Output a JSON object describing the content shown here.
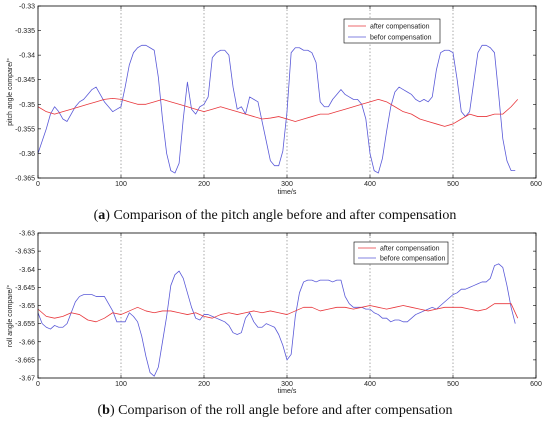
{
  "chart_data": [
    {
      "type": "line",
      "caption_letter": "a",
      "caption_text": "Comparison of the pitch angle before and after compensation",
      "xlabel": "time/s",
      "ylabel": "pitch angle compare/°",
      "xlim": [
        0,
        600
      ],
      "ylim": [
        -0.365,
        -0.33
      ],
      "xticks": [
        "0",
        "100",
        "200",
        "300",
        "400",
        "500",
        "600"
      ],
      "yticks": [
        "-0.33",
        "-0.335",
        "-0.34",
        "-0.345",
        "-0.35",
        "-0.355",
        "-0.36",
        "-0.365"
      ],
      "grid": "x-only",
      "legend": "top-right",
      "series": [
        {
          "name": "after compensation",
          "color": "#e8373c",
          "x": [
            0,
            10,
            20,
            30,
            40,
            50,
            60,
            70,
            80,
            90,
            100,
            110,
            120,
            130,
            140,
            150,
            160,
            170,
            180,
            190,
            200,
            210,
            220,
            230,
            240,
            250,
            260,
            270,
            280,
            290,
            300,
            310,
            320,
            330,
            340,
            350,
            360,
            370,
            380,
            390,
            400,
            410,
            420,
            430,
            440,
            450,
            460,
            470,
            480,
            490,
            500,
            510,
            520,
            530,
            540,
            550,
            560,
            570,
            578
          ],
          "values": [
            -0.3505,
            -0.3515,
            -0.352,
            -0.3515,
            -0.351,
            -0.3505,
            -0.35,
            -0.3495,
            -0.349,
            -0.3488,
            -0.349,
            -0.3495,
            -0.35,
            -0.35,
            -0.3495,
            -0.349,
            -0.3495,
            -0.35,
            -0.3505,
            -0.351,
            -0.3515,
            -0.351,
            -0.3505,
            -0.351,
            -0.3515,
            -0.352,
            -0.3525,
            -0.353,
            -0.3528,
            -0.3525,
            -0.353,
            -0.3535,
            -0.353,
            -0.3525,
            -0.352,
            -0.352,
            -0.3515,
            -0.351,
            -0.3505,
            -0.35,
            -0.3495,
            -0.349,
            -0.3495,
            -0.3505,
            -0.3515,
            -0.352,
            -0.353,
            -0.3535,
            -0.354,
            -0.3545,
            -0.354,
            -0.353,
            -0.352,
            -0.3525,
            -0.3525,
            -0.352,
            -0.352,
            -0.3505,
            -0.349
          ]
        },
        {
          "name": "befor compensation",
          "color": "#5a5ad8",
          "x": [
            0,
            5,
            10,
            15,
            20,
            25,
            30,
            35,
            40,
            45,
            50,
            55,
            60,
            65,
            70,
            75,
            80,
            85,
            90,
            95,
            100,
            105,
            110,
            115,
            120,
            125,
            130,
            135,
            140,
            145,
            150,
            155,
            160,
            165,
            170,
            175,
            180,
            185,
            190,
            195,
            200,
            205,
            210,
            215,
            220,
            225,
            230,
            235,
            240,
            245,
            250,
            255,
            260,
            265,
            270,
            275,
            280,
            285,
            290,
            295,
            300,
            305,
            310,
            315,
            320,
            325,
            330,
            335,
            340,
            345,
            350,
            355,
            360,
            365,
            370,
            375,
            380,
            385,
            390,
            395,
            400,
            405,
            410,
            415,
            420,
            425,
            430,
            435,
            440,
            445,
            450,
            455,
            460,
            465,
            470,
            475,
            480,
            485,
            490,
            495,
            500,
            505,
            510,
            515,
            520,
            525,
            530,
            535,
            540,
            545,
            550,
            555,
            560,
            565,
            570,
            575
          ],
          "values": [
            -0.36,
            -0.3575,
            -0.355,
            -0.352,
            -0.3505,
            -0.3515,
            -0.353,
            -0.3535,
            -0.352,
            -0.3505,
            -0.3495,
            -0.349,
            -0.348,
            -0.347,
            -0.3465,
            -0.348,
            -0.3495,
            -0.3505,
            -0.3515,
            -0.351,
            -0.3505,
            -0.3465,
            -0.342,
            -0.3395,
            -0.3385,
            -0.338,
            -0.338,
            -0.3385,
            -0.339,
            -0.3445,
            -0.353,
            -0.36,
            -0.3635,
            -0.364,
            -0.362,
            -0.353,
            -0.3455,
            -0.351,
            -0.352,
            -0.3505,
            -0.35,
            -0.3485,
            -0.3405,
            -0.3395,
            -0.339,
            -0.339,
            -0.34,
            -0.3465,
            -0.351,
            -0.3505,
            -0.352,
            -0.3485,
            -0.349,
            -0.3495,
            -0.3535,
            -0.3575,
            -0.3615,
            -0.3625,
            -0.3625,
            -0.3595,
            -0.3515,
            -0.3395,
            -0.3385,
            -0.3385,
            -0.339,
            -0.339,
            -0.3395,
            -0.3415,
            -0.3495,
            -0.3505,
            -0.3505,
            -0.349,
            -0.348,
            -0.347,
            -0.348,
            -0.3485,
            -0.349,
            -0.349,
            -0.35,
            -0.353,
            -0.36,
            -0.3635,
            -0.364,
            -0.361,
            -0.3555,
            -0.3505,
            -0.3475,
            -0.3465,
            -0.347,
            -0.3475,
            -0.348,
            -0.349,
            -0.3495,
            -0.349,
            -0.3495,
            -0.3485,
            -0.343,
            -0.3395,
            -0.339,
            -0.339,
            -0.3395,
            -0.345,
            -0.3515,
            -0.3525,
            -0.3515,
            -0.3455,
            -0.3395,
            -0.338,
            -0.338,
            -0.3385,
            -0.3395,
            -0.348,
            -0.357,
            -0.3615,
            -0.3635,
            -0.3635
          ]
        }
      ]
    },
    {
      "type": "line",
      "caption_letter": "b",
      "caption_text": "Comparison of the roll angle before and after compensation",
      "xlabel": "time/s",
      "ylabel": "roll angle compare/°",
      "xlim": [
        0,
        600
      ],
      "ylim": [
        -3.67,
        -3.63
      ],
      "xticks": [
        "0",
        "100",
        "200",
        "300",
        "400",
        "500",
        "600"
      ],
      "yticks": [
        "-3.63",
        "-3.635",
        "-3.64",
        "-3.645",
        "-3.65",
        "-3.655",
        "-3.66",
        "-3.665",
        "-3.67"
      ],
      "grid": "x-only",
      "legend": "top-right",
      "series": [
        {
          "name": "after compensation",
          "color": "#e8373c",
          "x": [
            0,
            10,
            20,
            30,
            40,
            50,
            60,
            70,
            80,
            90,
            100,
            110,
            120,
            130,
            140,
            150,
            160,
            170,
            180,
            190,
            200,
            210,
            220,
            230,
            240,
            250,
            260,
            270,
            280,
            290,
            300,
            310,
            320,
            330,
            340,
            350,
            360,
            370,
            380,
            390,
            400,
            410,
            420,
            430,
            440,
            450,
            460,
            470,
            480,
            490,
            500,
            510,
            520,
            530,
            540,
            550,
            560,
            570,
            578
          ],
          "values": [
            -3.651,
            -3.653,
            -3.6535,
            -3.653,
            -3.652,
            -3.6525,
            -3.654,
            -3.6545,
            -3.6535,
            -3.652,
            -3.6525,
            -3.6515,
            -3.6505,
            -3.6515,
            -3.652,
            -3.6515,
            -3.6515,
            -3.652,
            -3.6525,
            -3.652,
            -3.653,
            -3.6535,
            -3.6525,
            -3.652,
            -3.6525,
            -3.652,
            -3.6515,
            -3.652,
            -3.6515,
            -3.652,
            -3.6525,
            -3.6515,
            -3.6505,
            -3.6505,
            -3.6515,
            -3.651,
            -3.6505,
            -3.6505,
            -3.651,
            -3.6505,
            -3.65,
            -3.6505,
            -3.651,
            -3.6505,
            -3.65,
            -3.6505,
            -3.651,
            -3.6515,
            -3.651,
            -3.6505,
            -3.6505,
            -3.6505,
            -3.651,
            -3.6515,
            -3.651,
            -3.6495,
            -3.6495,
            -3.6495,
            -3.6535
          ]
        },
        {
          "name": "before compensation",
          "color": "#5a5ad8",
          "x": [
            0,
            5,
            10,
            15,
            20,
            25,
            30,
            35,
            40,
            45,
            50,
            55,
            60,
            65,
            70,
            75,
            80,
            85,
            90,
            95,
            100,
            105,
            110,
            115,
            120,
            125,
            130,
            135,
            140,
            145,
            150,
            155,
            160,
            165,
            170,
            175,
            180,
            185,
            190,
            195,
            200,
            205,
            210,
            215,
            220,
            225,
            230,
            235,
            240,
            245,
            250,
            255,
            260,
            265,
            270,
            275,
            280,
            285,
            290,
            295,
            300,
            305,
            310,
            315,
            320,
            325,
            330,
            335,
            340,
            345,
            350,
            355,
            360,
            365,
            370,
            375,
            380,
            385,
            390,
            395,
            400,
            405,
            410,
            415,
            420,
            425,
            430,
            435,
            440,
            445,
            450,
            455,
            460,
            465,
            470,
            475,
            480,
            485,
            490,
            495,
            500,
            505,
            510,
            515,
            520,
            525,
            530,
            535,
            540,
            545,
            550,
            555,
            560,
            565,
            570,
            575
          ],
          "values": [
            -3.652,
            -3.655,
            -3.656,
            -3.6565,
            -3.6555,
            -3.656,
            -3.656,
            -3.655,
            -3.652,
            -3.649,
            -3.6475,
            -3.647,
            -3.647,
            -3.647,
            -3.6475,
            -3.6475,
            -3.6475,
            -3.6495,
            -3.6515,
            -3.6545,
            -3.6545,
            -3.6545,
            -3.652,
            -3.653,
            -3.6545,
            -3.6585,
            -3.664,
            -3.6685,
            -3.6695,
            -3.667,
            -3.66,
            -3.653,
            -3.6445,
            -3.6415,
            -3.6405,
            -3.6425,
            -3.6465,
            -3.6505,
            -3.6535,
            -3.654,
            -3.6525,
            -3.6525,
            -3.653,
            -3.6535,
            -3.654,
            -3.6545,
            -3.6555,
            -3.6575,
            -3.658,
            -3.6575,
            -3.6535,
            -3.652,
            -3.6545,
            -3.656,
            -3.656,
            -3.655,
            -3.6555,
            -3.656,
            -3.658,
            -3.661,
            -3.665,
            -3.6635,
            -3.653,
            -3.6465,
            -3.6435,
            -3.643,
            -3.643,
            -3.6435,
            -3.643,
            -3.643,
            -3.643,
            -3.6435,
            -3.643,
            -3.643,
            -3.6475,
            -3.6495,
            -3.6505,
            -3.6505,
            -3.6505,
            -3.651,
            -3.651,
            -3.652,
            -3.6525,
            -3.6535,
            -3.6535,
            -3.6545,
            -3.654,
            -3.654,
            -3.6545,
            -3.6545,
            -3.6535,
            -3.6525,
            -3.652,
            -3.6515,
            -3.651,
            -3.6505,
            -3.651,
            -3.65,
            -3.649,
            -3.648,
            -3.647,
            -3.6465,
            -3.6455,
            -3.6455,
            -3.645,
            -3.6445,
            -3.644,
            -3.6435,
            -3.6435,
            -3.6425,
            -3.639,
            -3.6385,
            -3.6395,
            -3.6445,
            -3.6505,
            -3.655
          ]
        }
      ]
    }
  ]
}
